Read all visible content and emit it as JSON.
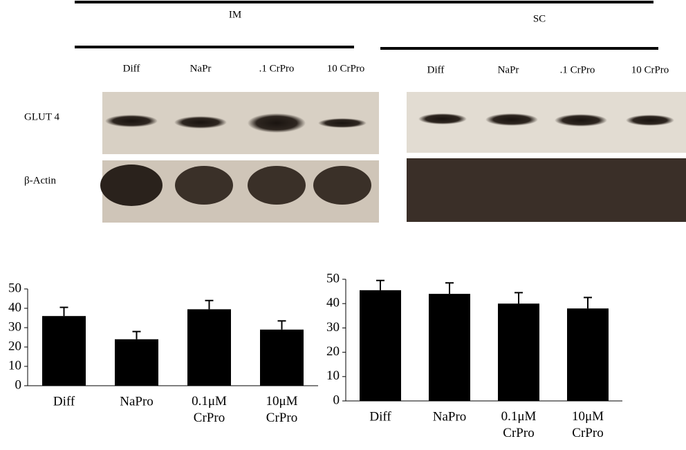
{
  "blots": {
    "groups": [
      {
        "name": "IM",
        "lanes": [
          "Diff",
          "NaPr",
          ".1 CrPro",
          "10 CrPro"
        ]
      },
      {
        "name": "SC",
        "lanes": [
          "Diff",
          "NaPr",
          ".1 CrPro",
          "10 CrPro"
        ]
      }
    ],
    "rows": [
      "GLUT 4",
      "β-Actin"
    ]
  },
  "chart_data": [
    {
      "type": "bar",
      "categories": [
        "Diff",
        "NaPro",
        "0.1μM CrPro",
        "10μM CrPro"
      ],
      "values": [
        36,
        24,
        39.5,
        29
      ],
      "errors": [
        4.5,
        4,
        4.5,
        4.5
      ],
      "color": "#000000",
      "ylim": [
        0,
        50
      ],
      "yticks": [
        0,
        10,
        20,
        30,
        40,
        50
      ]
    },
    {
      "type": "bar",
      "categories": [
        "Diff",
        "NaPro",
        "0.1μM CrPro",
        "10μM CrPro"
      ],
      "values": [
        45.5,
        44,
        40,
        38
      ],
      "errors": [
        4,
        4.5,
        4.5,
        4.5
      ],
      "color": "#000000",
      "ylim": [
        0,
        50
      ],
      "yticks": [
        0,
        10,
        20,
        30,
        40,
        50
      ]
    }
  ]
}
